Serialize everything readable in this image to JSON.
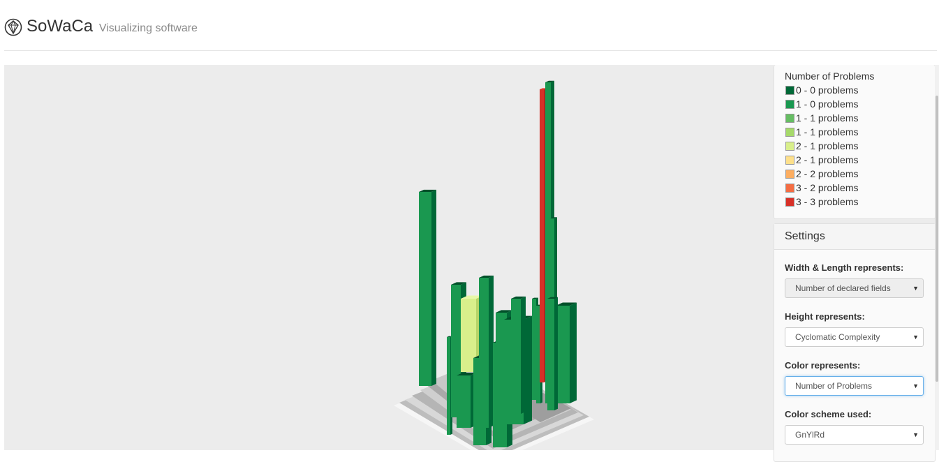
{
  "header": {
    "app_name": "SoWaCa",
    "tagline": "Visualizing software"
  },
  "legend": {
    "title": "Number of Problems",
    "items": [
      {
        "label": "0 - 0 problems",
        "color": "#006837"
      },
      {
        "label": "1 - 0 problems",
        "color": "#1a9850"
      },
      {
        "label": "1 - 1 problems",
        "color": "#66bd63"
      },
      {
        "label": "1 - 1 problems",
        "color": "#a6d96a"
      },
      {
        "label": "2 - 1 problems",
        "color": "#d9ef8b"
      },
      {
        "label": "2 - 1 problems",
        "color": "#fee08b"
      },
      {
        "label": "2 - 2 problems",
        "color": "#fdae61"
      },
      {
        "label": "3 - 2 problems",
        "color": "#f46d43"
      },
      {
        "label": "3 - 3 problems",
        "color": "#d73027"
      }
    ]
  },
  "settings": {
    "title": "Settings",
    "width_length": {
      "label": "Width & Length represents:",
      "value": "Number of declared fields"
    },
    "height": {
      "label": "Height represents:",
      "value": "Cyclomatic Complexity"
    },
    "color": {
      "label": "Color represents:",
      "value": "Number of Problems"
    },
    "scheme": {
      "label": "Color scheme used:",
      "value": "GnYlRd"
    }
  }
}
